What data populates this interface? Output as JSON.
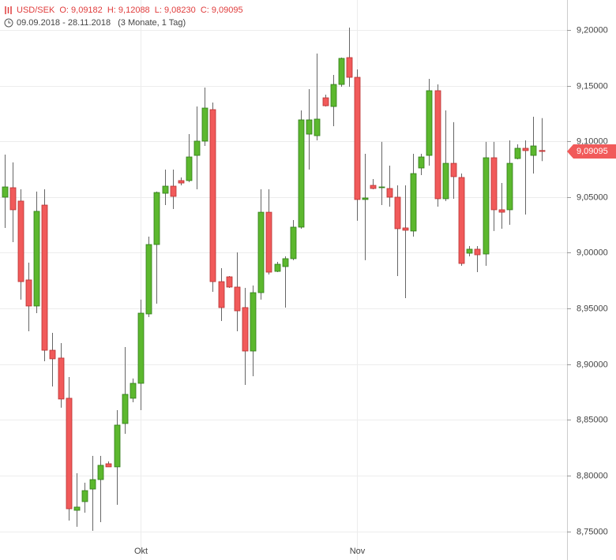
{
  "header": {
    "symbol": "USD/SEK",
    "ohlc": [
      "O: 9,09182",
      "H: 9,12088",
      "L: 9,08230",
      "C: 9,09095"
    ],
    "range": "09.09.2018 - 28.11.2018",
    "span": "(3 Monate, 1 Tag)"
  },
  "chart_data": {
    "type": "candlestick",
    "categories": [
      null,
      null,
      null,
      null,
      null,
      null,
      null,
      null,
      null,
      null,
      null,
      null,
      null,
      null,
      null,
      null,
      null,
      "Okt",
      null,
      null,
      null,
      null,
      null,
      null,
      null,
      null,
      null,
      null,
      null,
      null,
      null,
      null,
      null,
      null,
      null,
      null,
      null,
      null,
      null,
      null,
      null,
      null,
      null,
      null,
      "Nov",
      null,
      null,
      null,
      null,
      null,
      null,
      null,
      null,
      null,
      null,
      null,
      null,
      null,
      null,
      null,
      null,
      null,
      null,
      null,
      null,
      null,
      null,
      null
    ],
    "series": [
      {
        "name": "USD/SEK",
        "up_color": "#5cb82e",
        "down_color": "#f15a5a",
        "open": [
          9.0499,
          9.0584,
          9.0464,
          8.9756,
          8.9522,
          9.0428,
          8.9125,
          8.9055,
          8.8694,
          8.7688,
          8.7766,
          8.7879,
          8.7964,
          8.8106,
          8.8078,
          8.8467,
          8.8694,
          8.8828,
          8.9451,
          9.0074,
          9.0534,
          9.0598,
          9.0648,
          9.0648,
          9.0874,
          9.1002,
          9.1285,
          8.9741,
          8.9784,
          8.9692,
          8.9508,
          8.9118,
          8.9642,
          9.0364,
          8.9833,
          8.9876,
          8.9947,
          9.023,
          9.1065,
          9.1051,
          9.1391,
          9.1313,
          9.1511,
          9.1752,
          9.1575,
          9.0478,
          9.0605,
          9.0584,
          9.0577,
          9.0499,
          9.0223,
          9.0195,
          9.0761,
          9.0874,
          9.1455,
          9.0485,
          9.0803,
          9.0676,
          8.9996,
          9.0032,
          8.9989,
          9.0853,
          9.0386,
          9.0386,
          9.0846,
          9.0938,
          9.0874,
          9.09182
        ],
        "high": [
          9.0881,
          9.0811,
          9.057,
          8.9911,
          9.0549,
          9.057,
          8.9281,
          8.9189,
          8.8885,
          8.8021,
          8.7936,
          8.8177,
          8.8177,
          8.8127,
          8.8587,
          8.9154,
          8.8871,
          8.9579,
          9.0145,
          9.0549,
          9.0747,
          9.0747,
          9.0676,
          9.1065,
          9.1313,
          9.1483,
          9.1349,
          8.9862,
          8.9791,
          9.0003,
          8.9685,
          8.9706,
          9.057,
          9.057,
          8.9918,
          8.9968,
          9.0294,
          9.1278,
          9.1469,
          9.1788,
          9.1419,
          9.1596,
          9.1752,
          9.2021,
          9.1646,
          9.0888,
          9.0662,
          9.0995,
          9.0782,
          9.0605,
          9.0605,
          9.0888,
          9.0888,
          9.1561,
          9.1511,
          9.1278,
          9.1172,
          9.0711,
          9.006,
          9.006,
          9.0995,
          9.0995,
          9.0626,
          9.1009,
          9.0973,
          9.1009,
          9.1221,
          9.12088
        ],
        "low": [
          9.0223,
          9.0095,
          8.9579,
          8.9295,
          8.9458,
          8.9026,
          8.88,
          8.8609,
          8.7596,
          8.754,
          8.7667,
          8.7504,
          8.7582,
          8.8078,
          8.7738,
          8.8375,
          8.8658,
          8.8587,
          8.9423,
          8.9543,
          9.0428,
          9.0393,
          9.0605,
          9.0634,
          9.057,
          9.0959,
          8.9649,
          8.9387,
          8.9685,
          8.9295,
          8.8814,
          8.8892,
          8.9579,
          8.9805,
          8.9826,
          8.9508,
          8.9933,
          9.0216,
          9.0747,
          9.1009,
          9.1313,
          9.1136,
          9.149,
          9.149,
          9.0287,
          8.9933,
          9.057,
          9.0428,
          9.0414,
          8.9791,
          8.9593,
          9.0145,
          9.0697,
          9.0782,
          9.0414,
          9.0464,
          9.0485,
          8.9883,
          8.9968,
          8.9826,
          8.9883,
          9.0195,
          9.0216,
          9.0251,
          9.0839,
          9.0343,
          9.0711,
          9.0823
        ],
        "close": [
          9.0591,
          9.0386,
          8.9741,
          8.9522,
          9.0372,
          8.9125,
          8.9048,
          8.8687,
          8.7702,
          8.7717,
          8.7865,
          8.7964,
          8.8092,
          8.8078,
          8.8453,
          8.8729,
          8.8828,
          8.9458,
          9.0074,
          9.0541,
          9.0598,
          9.0506,
          9.0626,
          9.086,
          9.1002,
          9.1299,
          8.9741,
          8.9508,
          8.9692,
          8.9479,
          8.9118,
          8.9642,
          9.0364,
          8.9826,
          8.9897,
          8.9947,
          9.023,
          9.1193,
          9.1193,
          9.12,
          9.132,
          9.1511,
          9.1745,
          9.1575,
          9.0478,
          9.0492,
          9.0577,
          9.0591,
          9.0499,
          9.0216,
          9.0202,
          9.0711,
          9.086,
          9.1455,
          9.0485,
          9.0803,
          9.0683,
          8.9904,
          9.0032,
          8.9982,
          9.0853,
          9.0386,
          9.0364,
          9.0803,
          9.0938,
          9.0917,
          9.0959,
          9.09095
        ]
      }
    ],
    "ylim": [
      8.7242,
      9.2269
    ],
    "yticks": [
      {
        "value": 8.75,
        "label": "8,75000"
      },
      {
        "value": 8.8,
        "label": "8,80000"
      },
      {
        "value": 8.85,
        "label": "8,85000"
      },
      {
        "value": 8.9,
        "label": "8,90000"
      },
      {
        "value": 8.95,
        "label": "8,95000"
      },
      {
        "value": 9.0,
        "label": "9,00000"
      },
      {
        "value": 9.05,
        "label": "9,05000"
      },
      {
        "value": 9.1,
        "label": "9,10000"
      },
      {
        "value": 9.15,
        "label": "9,15000"
      },
      {
        "value": 9.2,
        "label": "9,20000"
      }
    ],
    "last_price": {
      "value": 9.09095,
      "label": "9,09095"
    },
    "grid": true
  }
}
